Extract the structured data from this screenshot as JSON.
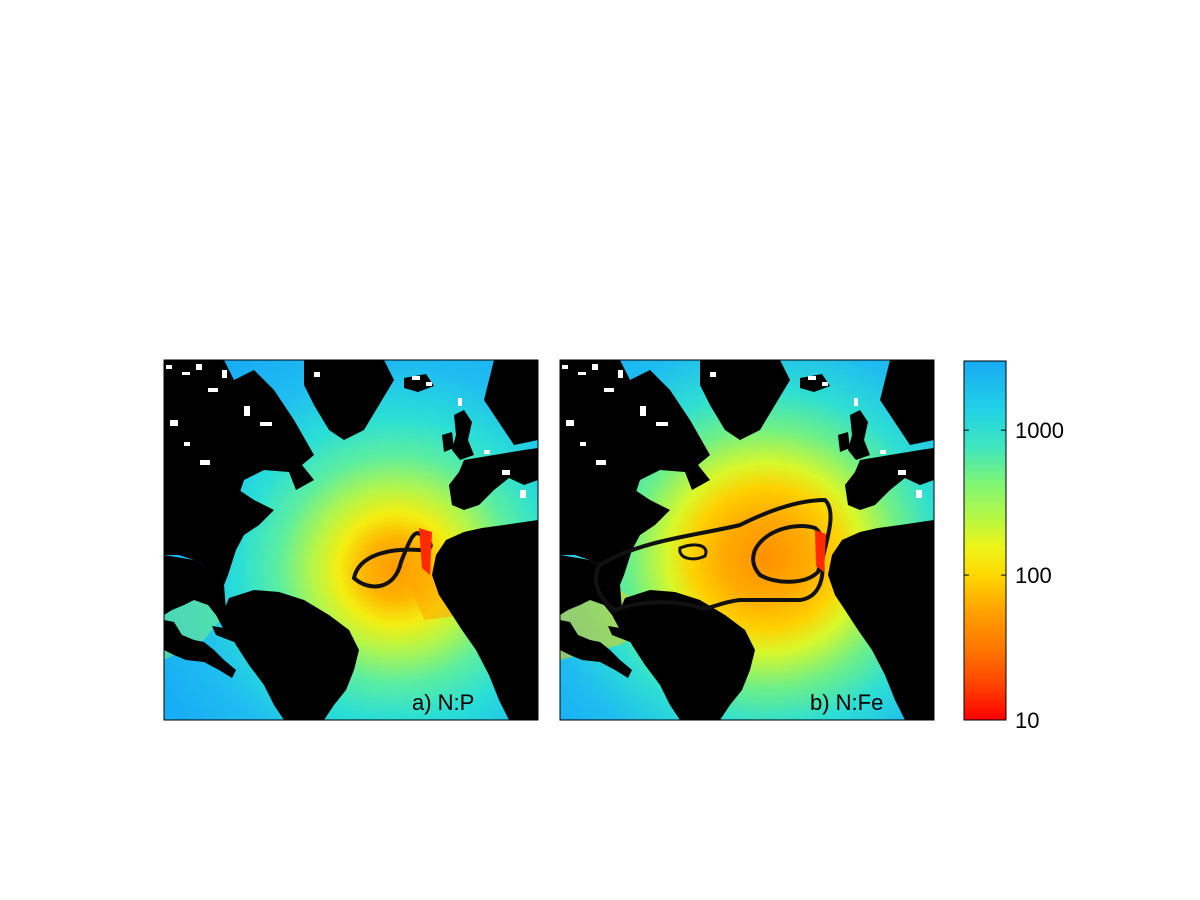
{
  "panels": [
    {
      "label": "a) N:P",
      "variable": "N:P"
    },
    {
      "label": "b) N:Fe",
      "variable": "N:Fe"
    }
  ],
  "colorbar": {
    "scale": "log",
    "range": [
      10,
      3000
    ],
    "ticks": [
      {
        "value": 1000,
        "label": "1000"
      },
      {
        "value": 100,
        "label": "100"
      },
      {
        "value": 10,
        "label": "10"
      }
    ],
    "colormap": [
      "#ff0000",
      "#ff3b00",
      "#ff6400",
      "#ff8400",
      "#ffa300",
      "#ffc000",
      "#ffdc00",
      "#f6f10a",
      "#d2f92a",
      "#a8f94f",
      "#7ef576",
      "#57ee9f",
      "#35e3c6",
      "#23d2e6",
      "#1fbdf1",
      "#1aa8f5"
    ]
  },
  "colors": {
    "land": "#000000",
    "ocean_high": "#18b4f6",
    "ocean_mid": "#7cf27a",
    "ocean_low": "#ff9a00",
    "contour": "#111111"
  }
}
